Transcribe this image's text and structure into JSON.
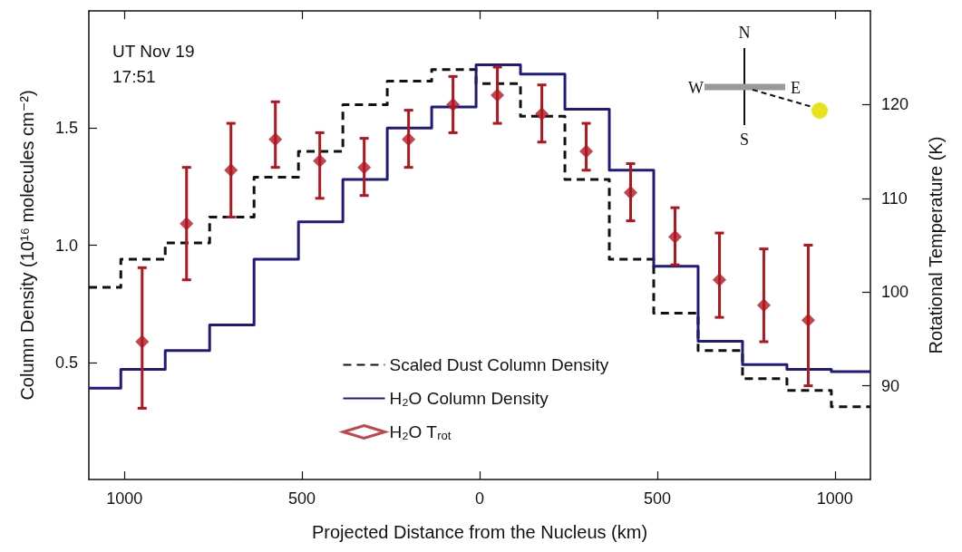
{
  "chart_data": {
    "type": "step",
    "xlabel": "Projected Distance from the Nucleus (km)",
    "ylabel": "Column Density (10¹⁶ molecules cm⁻²)",
    "y2label": "Rotational Temperature (K)",
    "annotations": [
      "UT Nov 19",
      "17:51",
      "N",
      "S",
      "W",
      "E"
    ],
    "xlim": [
      -1100,
      1100
    ],
    "xticks": [
      {
        "value": -1000,
        "label": "1000"
      },
      {
        "value": -500,
        "label": "500"
      },
      0,
      500,
      1000
    ],
    "ylim": [
      0,
      2
    ],
    "yticks": [
      0.5,
      {
        "value": 1,
        "label": "1.0"
      },
      1.5
    ],
    "y2lim": [
      80,
      130
    ],
    "y2ticks": [
      90,
      100,
      110,
      120
    ],
    "grid": false,
    "legend": "bottom",
    "series": [
      {
        "name": "Scaled Dust Column Density",
        "color": "#111111",
        "line_style": "dashed",
        "x": [
          -1100,
          -1010,
          -885,
          -760,
          -635,
          -510,
          -385,
          -260,
          -135,
          -10,
          115,
          240,
          365,
          490,
          615,
          740,
          865,
          990,
          1100
        ],
        "values": [
          0.82,
          0.94,
          1.01,
          1.12,
          1.29,
          1.4,
          1.6,
          1.7,
          1.75,
          1.69,
          1.55,
          1.28,
          0.94,
          0.71,
          0.55,
          0.43,
          0.38,
          0.31,
          0.31
        ]
      },
      {
        "name": "H₂O Column Density",
        "color": "#1f1a7c",
        "line_style": "solid",
        "x": [
          -1100,
          -1010,
          -885,
          -760,
          -635,
          -510,
          -385,
          -260,
          -135,
          -10,
          115,
          240,
          365,
          490,
          615,
          740,
          865,
          990,
          1100
        ],
        "values": [
          0.39,
          0.47,
          0.55,
          0.66,
          0.94,
          1.1,
          1.28,
          1.5,
          1.59,
          1.77,
          1.73,
          1.58,
          1.32,
          0.91,
          0.59,
          0.49,
          0.47,
          0.46,
          0.46
        ]
      },
      {
        "name": "H₂O T$_{rot}$",
        "type": "scatter",
        "axis": "y2",
        "marker": "diamond",
        "color": "#b0171f",
        "x": [
          -950,
          -825,
          -700,
          -575,
          -450,
          -325,
          -200,
          -75,
          50,
          175,
          300,
          425,
          550,
          675,
          800,
          925
        ],
        "values": [
          94.7,
          107.3,
          113.0,
          116.3,
          114.0,
          113.3,
          116.3,
          120.0,
          121.0,
          119.0,
          115.0,
          110.6,
          105.9,
          101.3,
          98.6,
          97.0
        ],
        "errors": [
          [
            87.6,
            102.6
          ],
          [
            101.3,
            113.3
          ],
          [
            108.0,
            118.0
          ],
          [
            113.3,
            120.3
          ],
          [
            110.0,
            117.0
          ],
          [
            110.3,
            116.4
          ],
          [
            113.3,
            119.4
          ],
          [
            117.0,
            123.0
          ],
          [
            118.0,
            124.0
          ],
          [
            116.0,
            122.1
          ],
          [
            113.0,
            118.0
          ],
          [
            107.6,
            113.7
          ],
          [
            102.9,
            109.0
          ],
          [
            97.3,
            106.3
          ],
          [
            94.7,
            104.6
          ],
          [
            90.0,
            105.0
          ]
        ]
      }
    ]
  }
}
